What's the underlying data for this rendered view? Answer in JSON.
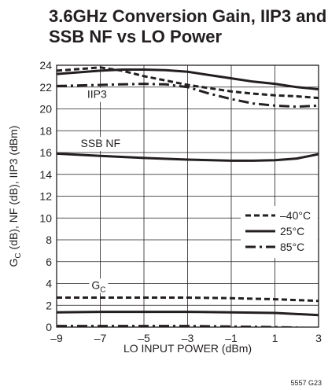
{
  "chart_data": {
    "type": "line",
    "title": [
      "3.6GHz Conversion Gain, IIP3 and",
      "SSB NF vs LO Power"
    ],
    "xlabel": "LO INPUT POWER (dBm)",
    "ylabel": "G_C (dB), NF (dB), IIP3 (dBm)",
    "xlim": [
      -9,
      3
    ],
    "ylim": [
      0,
      24
    ],
    "xticks": [
      -9,
      -7,
      -5,
      -3,
      -1,
      1,
      3
    ],
    "yticks": [
      0,
      2,
      4,
      6,
      8,
      10,
      12,
      14,
      16,
      18,
      20,
      22,
      24
    ],
    "grid": true,
    "legend": {
      "position": "right",
      "entries": [
        {
          "label": "–40°C",
          "style": "short-dash"
        },
        {
          "label": "25°C",
          "style": "solid"
        },
        {
          "label": "85°C",
          "style": "long-dash"
        }
      ]
    },
    "annotations": [
      {
        "text": "IIP3",
        "x": -7.6,
        "y": 21
      },
      {
        "text": "SSB NF",
        "x": -7.9,
        "y": 16.5
      },
      {
        "text": "G",
        "sub": "C",
        "x": -7.4,
        "y": 3.5
      }
    ],
    "series": [
      {
        "group": "IIP3",
        "temp": "–40°C",
        "style": "short-dash",
        "x": [
          -9,
          -7,
          -6,
          -5,
          -4,
          -3,
          -2,
          -1,
          0,
          1,
          2,
          3
        ],
        "y": [
          23.5,
          23.8,
          23.5,
          23.0,
          22.6,
          22.2,
          21.9,
          21.6,
          21.4,
          21.25,
          21.15,
          21.0
        ]
      },
      {
        "group": "IIP3",
        "temp": "25°C",
        "style": "solid",
        "x": [
          -9,
          -7,
          -6,
          -5,
          -4,
          -3,
          -2,
          -1,
          0,
          1,
          2,
          3
        ],
        "y": [
          23.2,
          23.5,
          23.6,
          23.6,
          23.55,
          23.4,
          23.1,
          22.8,
          22.5,
          22.3,
          22.0,
          21.8
        ]
      },
      {
        "group": "IIP3",
        "temp": "85°C",
        "style": "long-dash",
        "x": [
          -9,
          -7,
          -6,
          -5,
          -4,
          -3,
          -2,
          -1,
          0,
          1,
          2,
          3
        ],
        "y": [
          22.1,
          22.2,
          22.25,
          22.3,
          22.25,
          22.0,
          21.4,
          20.9,
          20.5,
          20.3,
          20.2,
          20.3
        ]
      },
      {
        "group": "SSB NF",
        "temp": "25°C",
        "style": "solid",
        "x": [
          -9,
          -7,
          -5,
          -3,
          -1,
          0,
          1,
          2,
          3
        ],
        "y": [
          15.9,
          15.7,
          15.5,
          15.35,
          15.25,
          15.25,
          15.3,
          15.45,
          15.85
        ]
      },
      {
        "group": "G_C",
        "temp": "–40°C",
        "style": "short-dash",
        "x": [
          -9,
          -7,
          -5,
          -3,
          -1,
          1,
          3
        ],
        "y": [
          2.7,
          2.7,
          2.7,
          2.7,
          2.65,
          2.55,
          2.4
        ]
      },
      {
        "group": "G_C",
        "temp": "25°C",
        "style": "solid",
        "x": [
          -9,
          -7,
          -5,
          -3,
          -1,
          1,
          3
        ],
        "y": [
          1.35,
          1.4,
          1.4,
          1.4,
          1.35,
          1.3,
          1.1
        ]
      },
      {
        "group": "G_C",
        "temp": "85°C",
        "style": "long-dash",
        "x": [
          -9,
          -7,
          -5,
          -3,
          -1,
          1,
          3
        ],
        "y": [
          0.1,
          0.1,
          0.1,
          0.1,
          0.05,
          0.0,
          -0.1
        ]
      }
    ],
    "figure_id": "5557 G23"
  }
}
